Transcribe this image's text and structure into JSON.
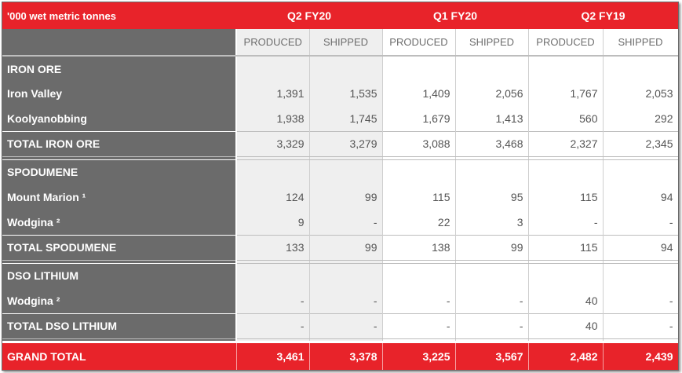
{
  "header": {
    "unit_label": "'000 wet metric tonnes",
    "periods": [
      "Q2 FY20",
      "Q1 FY20",
      "Q2 FY19"
    ],
    "subcolumns": [
      "PRODUCED",
      "SHIPPED",
      "PRODUCED",
      "SHIPPED",
      "PRODUCED",
      "SHIPPED"
    ]
  },
  "sections": [
    {
      "title": "IRON ORE",
      "rows": [
        {
          "label": "Iron Valley",
          "values": [
            "1,391",
            "1,535",
            "1,409",
            "2,056",
            "1,767",
            "2,053"
          ]
        },
        {
          "label": "Koolyanobbing",
          "values": [
            "1,938",
            "1,745",
            "1,679",
            "1,413",
            "560",
            "292"
          ]
        }
      ],
      "total": {
        "label": "TOTAL IRON ORE",
        "values": [
          "3,329",
          "3,279",
          "3,088",
          "3,468",
          "2,327",
          "2,345"
        ]
      }
    },
    {
      "title": "SPODUMENE",
      "rows": [
        {
          "label": "Mount Marion ¹",
          "values": [
            "124",
            "99",
            "115",
            "95",
            "115",
            "94"
          ]
        },
        {
          "label": "Wodgina ²",
          "values": [
            "9",
            "-",
            "22",
            "3",
            "-",
            "-"
          ]
        }
      ],
      "total": {
        "label": "TOTAL SPODUMENE",
        "values": [
          "133",
          "99",
          "138",
          "99",
          "115",
          "94"
        ]
      }
    },
    {
      "title": "DSO LITHIUM",
      "rows": [
        {
          "label": "Wodgina ²",
          "values": [
            "-",
            "-",
            "-",
            "-",
            "40",
            "-"
          ]
        }
      ],
      "total": {
        "label": "TOTAL DSO LITHIUM",
        "values": [
          "-",
          "-",
          "-",
          "-",
          "40",
          "-"
        ]
      }
    }
  ],
  "grand_total": {
    "label": "GRAND TOTAL",
    "values": [
      "3,461",
      "3,378",
      "3,225",
      "3,567",
      "2,482",
      "2,439"
    ]
  },
  "colors": {
    "accent_red": "#e8232a",
    "label_gray": "#6b6b6b",
    "shade_gray": "#efefef"
  }
}
